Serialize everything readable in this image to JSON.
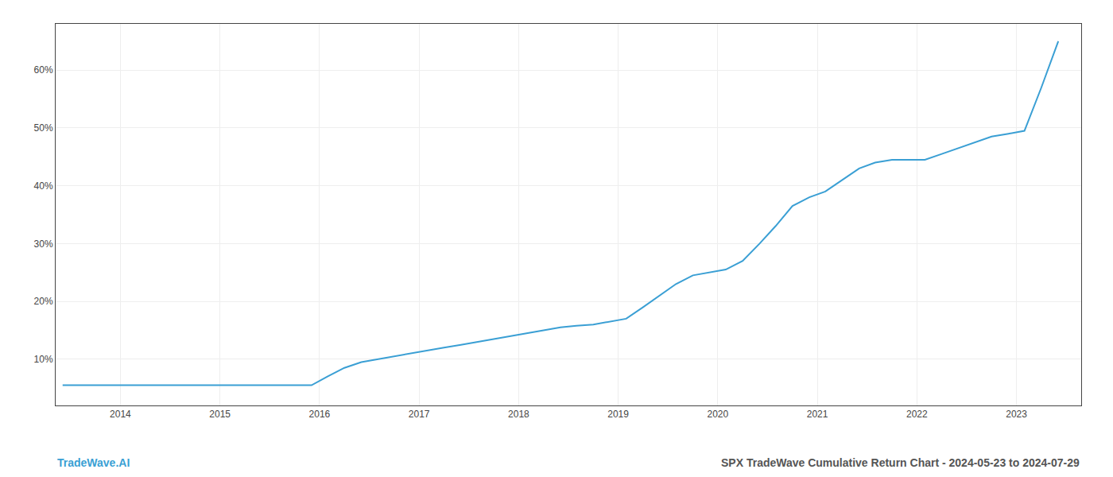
{
  "chart_data": {
    "type": "line",
    "title": "SPX TradeWave Cumulative Return Chart - 2024-05-23 to 2024-07-29",
    "annotations": [
      "TradeWave.AI"
    ],
    "color": "#3a9fd4",
    "x": [
      2013.42,
      2013.58,
      2013.75,
      2013.92,
      2014.08,
      2014.25,
      2014.42,
      2014.58,
      2014.75,
      2014.92,
      2015.08,
      2015.25,
      2015.42,
      2015.58,
      2015.75,
      2015.92,
      2016.08,
      2016.25,
      2016.42,
      2016.58,
      2016.75,
      2016.92,
      2017.08,
      2017.25,
      2017.42,
      2017.58,
      2017.75,
      2017.92,
      2018.08,
      2018.25,
      2018.42,
      2018.58,
      2018.75,
      2018.92,
      2019.08,
      2019.25,
      2019.42,
      2019.58,
      2019.75,
      2019.92,
      2020.08,
      2020.25,
      2020.42,
      2020.58,
      2020.75,
      2020.92,
      2021.08,
      2021.25,
      2021.42,
      2021.58,
      2021.75,
      2021.92,
      2022.08,
      2022.25,
      2022.42,
      2022.58,
      2022.75,
      2022.92,
      2023.08,
      2023.25,
      2023.42
    ],
    "values": [
      5.5,
      5.5,
      5.5,
      5.5,
      5.5,
      5.5,
      5.5,
      5.5,
      5.5,
      5.5,
      5.5,
      5.5,
      5.5,
      5.5,
      5.5,
      5.5,
      7.0,
      8.5,
      9.5,
      10.0,
      10.5,
      11.0,
      11.5,
      12.0,
      12.5,
      13.0,
      13.5,
      14.0,
      14.5,
      15.0,
      15.5,
      15.8,
      16.0,
      16.5,
      17.0,
      19.0,
      21.0,
      23.0,
      24.5,
      25.0,
      25.5,
      27.0,
      30.0,
      33.0,
      36.5,
      38.0,
      39.0,
      41.0,
      43.0,
      44.0,
      44.5,
      44.5,
      44.5,
      45.5,
      46.5,
      47.5,
      48.5,
      49.0,
      49.5,
      57.0,
      65.0
    ],
    "xlim": [
      2013.35,
      2023.65
    ],
    "xticks": [
      2014,
      2015,
      2016,
      2017,
      2018,
      2019,
      2020,
      2021,
      2022,
      2023
    ],
    "ylim": [
      2,
      68
    ],
    "yticks": [
      {
        "value": 10,
        "label": "10%"
      },
      {
        "value": 20,
        "label": "20%"
      },
      {
        "value": 30,
        "label": "30%"
      },
      {
        "value": 40,
        "label": "40%"
      },
      {
        "value": 50,
        "label": "50%"
      },
      {
        "value": 60,
        "label": "60%"
      }
    ],
    "grid": true
  }
}
